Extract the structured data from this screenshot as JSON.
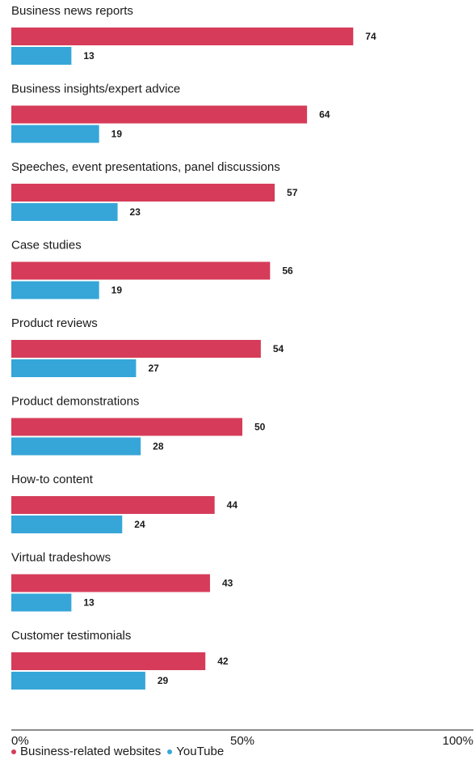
{
  "chart_data": {
    "type": "bar",
    "orientation": "horizontal",
    "categories": [
      "Business news reports",
      "Business insights/expert advice",
      "Speeches, event presentations, panel discussions",
      "Case studies",
      "Product reviews",
      "Product demonstrations",
      "How-to content",
      "Virtual tradeshows",
      "Customer testimonials"
    ],
    "series": [
      {
        "name": "Business-related websites",
        "color": "#d63c5a",
        "values": [
          74,
          64,
          57,
          56,
          54,
          50,
          44,
          43,
          42
        ]
      },
      {
        "name": "YouTube",
        "color": "#36a6d8",
        "values": [
          13,
          19,
          23,
          19,
          27,
          28,
          24,
          13,
          29
        ]
      }
    ],
    "xlim": [
      0,
      100
    ],
    "xticks": [
      0,
      50,
      100
    ],
    "xtick_labels": [
      "0%",
      "50%",
      "100%"
    ],
    "title": "",
    "xlabel": "",
    "ylabel": "",
    "grid": false,
    "legend_position": "bottom-left"
  }
}
